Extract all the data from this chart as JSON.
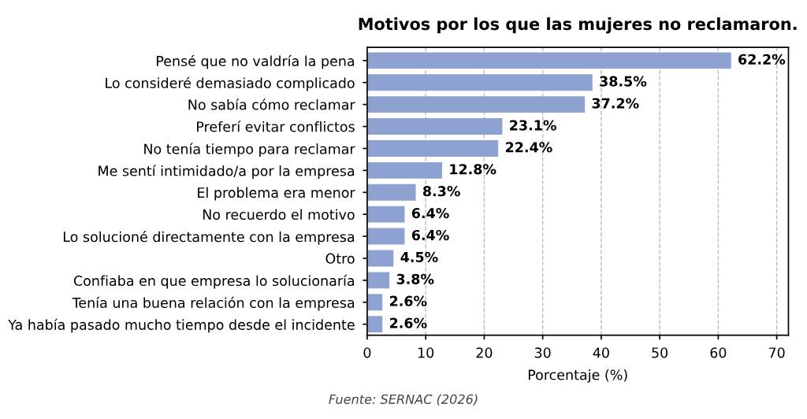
{
  "chart_data": {
    "type": "bar",
    "orientation": "horizontal",
    "title": "Motivos por los que las mujeres no reclamaron.",
    "categories": [
      "Pensé que no valdría la pena",
      "Lo consideré demasiado complicado",
      "No sabía cómo reclamar",
      "Preferí evitar conflictos",
      "No tenía tiempo para reclamar",
      "Me sentí intimidado/a por la empresa",
      "El problema era menor",
      "No recuerdo el motivo",
      "Lo solucioné directamente con la empresa",
      "Otro",
      "Confiaba en que empresa lo solucionaría",
      "Tenía una buena relación con la empresa",
      "Ya había pasado mucho tiempo desde el incidente"
    ],
    "values": [
      62.2,
      38.5,
      37.2,
      23.1,
      22.4,
      12.8,
      8.3,
      6.4,
      6.4,
      4.5,
      3.8,
      2.6,
      2.6
    ],
    "value_labels": [
      "62.2%",
      "38.5%",
      "37.2%",
      "23.1%",
      "22.4%",
      "12.8%",
      "8.3%",
      "6.4%",
      "6.4%",
      "4.5%",
      "3.8%",
      "2.6%",
      "2.6%"
    ],
    "color": "#8da2d1",
    "xlabel": "Porcentaje (%)",
    "xlim": [
      0,
      72
    ],
    "xticks": [
      0,
      10,
      20,
      30,
      40,
      50,
      60,
      70
    ],
    "grid": "x",
    "annotations": [
      "Fuente: SERNAC (2026)"
    ]
  }
}
